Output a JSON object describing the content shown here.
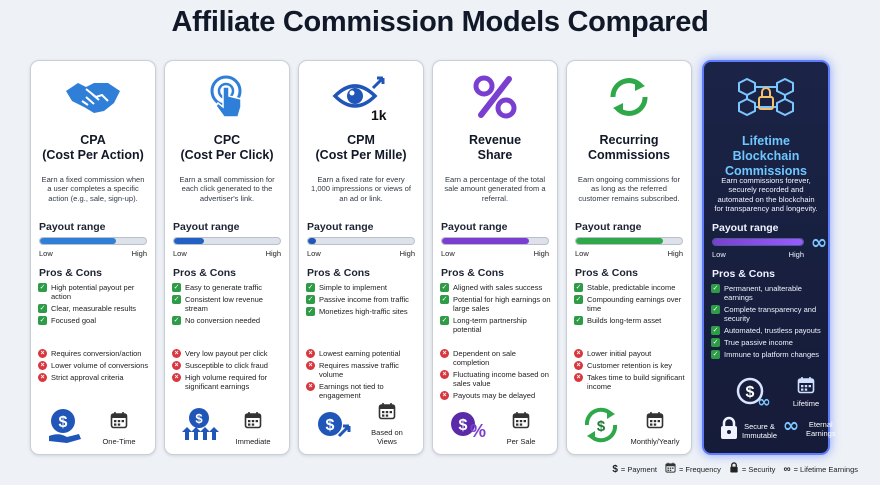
{
  "title": "Affiliate Commission Models Compared",
  "labels": {
    "payout_range": "Payout range",
    "low": "Low",
    "high": "High",
    "pros_cons": "Pros & Cons"
  },
  "cards": [
    {
      "name": "CPA\n(Cost Per Action)",
      "icon": "handshake-icon",
      "description": "Earn a fixed commission when a user completes a specific action (e.g., sale, sign-up).",
      "payout_level": 0.72,
      "bar_color": "#2f7fd8",
      "pros": [
        "High potential payout per action",
        "Clear, measurable results",
        "Focused goal"
      ],
      "cons": [
        "Requires conversion/action",
        "Lower volume of conversions",
        "Strict approval criteria"
      ],
      "footer_icon": "dollar-hand-icon",
      "footer_label": "One-Time"
    },
    {
      "name": "CPC\n(Cost Per Click)",
      "icon": "click-hand-icon",
      "description": "Earn a small commission for each click generated to the advertiser's link.",
      "payout_level": 0.28,
      "bar_color": "#2260c4",
      "pros": [
        "Easy to generate traffic",
        "Consistent low revenue stream",
        "No conversion needed"
      ],
      "cons": [
        "Very low payout per click",
        "Susceptible to click fraud",
        "High volume required for significant earnings"
      ],
      "footer_icon": "dollar-people-icon",
      "footer_label": "Immediate"
    },
    {
      "name": "CPM\n(Cost Per Mille)",
      "icon": "eye-1k-icon",
      "description": "Earn a fixed rate for every 1,000 impressions or views of an ad or link.",
      "payout_level": 0.08,
      "bar_color": "#1f56b8",
      "pros": [
        "Simple to implement",
        "Passive income from traffic",
        "Monetizes high-traffic sites"
      ],
      "cons": [
        "Lowest earning potential",
        "Requires massive traffic volume",
        "Earnings not tied to engagement"
      ],
      "footer_icon": "dollar-growth-icon",
      "footer_label": "Based on\nViews"
    },
    {
      "name": "Revenue\nShare",
      "icon": "percent-icon",
      "description": "Earn a percentage of the total sale amount generated from a referral.",
      "payout_level": 0.82,
      "bar_color": "#7a3fd0",
      "pros": [
        "Aligned with sales success",
        "Potential for high earnings on large sales",
        "Long-term partnership potential"
      ],
      "cons": [
        "Dependent on sale completion",
        "Fluctuating income based on sales value",
        "Payouts may be delayed"
      ],
      "footer_icon": "dollar-percent-icon",
      "footer_label": "Per Sale"
    },
    {
      "name": "Recurring\nCommissions",
      "icon": "recycle-arrows-icon",
      "description": "Earn ongoing commissions for as long as the referred customer remains subscribed.",
      "payout_level": 0.82,
      "bar_color": "#2fa84a",
      "pros": [
        "Stable, predictable income",
        "Compounding earnings over time",
        "Builds long-term asset"
      ],
      "cons": [
        "Lower initial payout",
        "Customer retention is key",
        "Takes time to build significant income"
      ],
      "footer_icon": "dollar-cycle-icon",
      "footer_label": "Monthly/Yearly"
    },
    {
      "name": "Lifetime Blockchain\nCommissions",
      "icon": "blockchain-lock-icon",
      "description": "Earn commissions forever, securely recorded and automated on the blockchain for transparency and longevity.",
      "payout_level": 1.0,
      "bar_color": "#9a5cff",
      "pros": [
        "Permanent, unalterable earnings",
        "Complete transparency and security",
        "Automated, trustless payouts",
        "True passive income",
        "Immune to platform changes"
      ],
      "cons": [],
      "footer_icon": "dollar-infinity-icon",
      "footer_label": "Lifetime",
      "footer_extra": [
        {
          "icon": "lock-icon",
          "label": "Secure &\nImmutable"
        },
        {
          "icon": "infinity-icon",
          "label": "Eternal\nEarnings"
        }
      ]
    }
  ],
  "legend": [
    {
      "symbol": "$",
      "label": "= Payment"
    },
    {
      "symbol": "cal",
      "label": "= Frequency"
    },
    {
      "symbol": "lock",
      "label": "= Security"
    },
    {
      "symbol": "∞",
      "label": "= Lifetime Earnings"
    }
  ]
}
